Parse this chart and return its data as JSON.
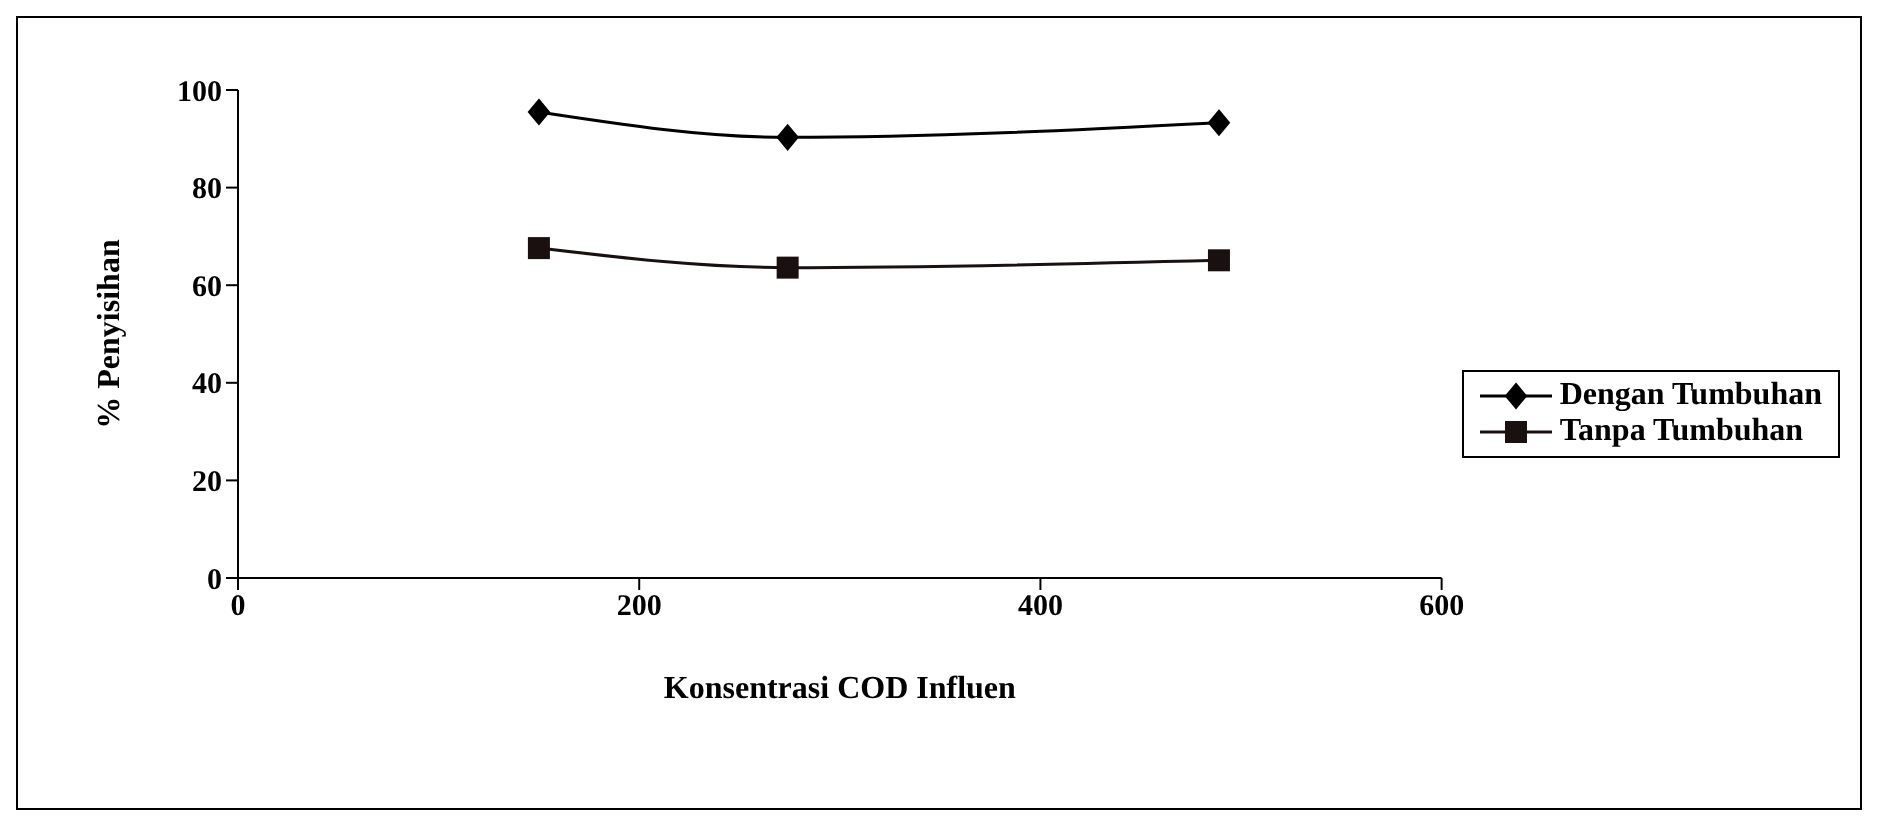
{
  "chart_data": {
    "type": "line",
    "xlabel": "Konsentrasi COD Influen",
    "ylabel": "% Penyisihan",
    "x": [
      150,
      274,
      489
    ],
    "series": [
      {
        "name": "Dengan Tumbuhan",
        "color": "#000000",
        "marker": "diamond",
        "values": [
          95.5,
          90.3,
          93.3
        ]
      },
      {
        "name": "Tanpa Tumbuhan",
        "color": "#1a1010",
        "marker": "square",
        "values": [
          67.6,
          63.6,
          65.1
        ]
      }
    ],
    "xlim": [
      0,
      600
    ],
    "xticks": [
      0,
      200,
      400,
      600
    ],
    "ylim": [
      0,
      100
    ],
    "yticks": [
      0,
      20,
      40,
      60,
      80,
      100
    ],
    "grid": false,
    "legend": "right"
  }
}
